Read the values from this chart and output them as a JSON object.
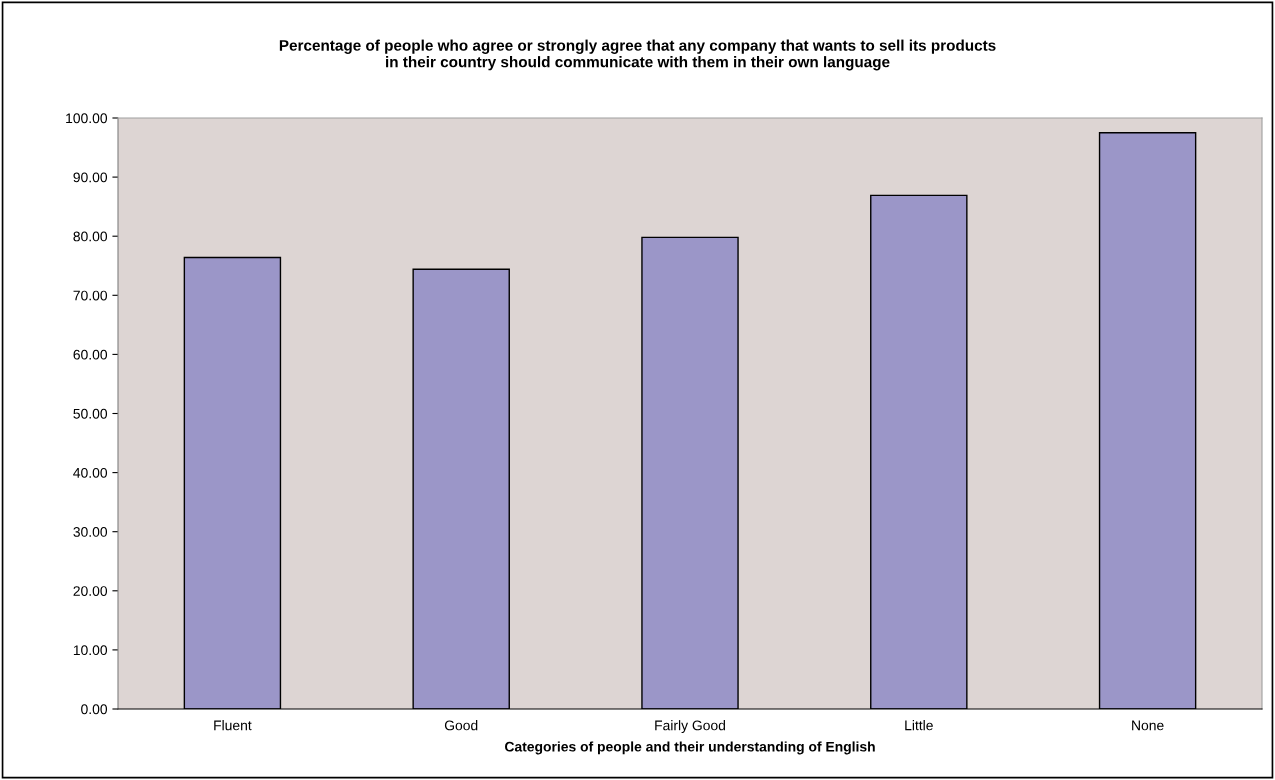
{
  "chart_data": {
    "type": "bar",
    "title": "Percentage of people who agree or strongly agree that any company that wants to sell its products\nin their country should communicate with them in their own language",
    "xlabel": "Categories of people and their understanding of English",
    "categories": [
      "Fluent",
      "Good",
      "Fairly Good",
      "Little",
      "None"
    ],
    "values": [
      76.4,
      74.4,
      79.8,
      86.9,
      97.5
    ],
    "color": "#9b96c8",
    "ylim": [
      0,
      100
    ],
    "yticks": [
      {
        "value": 0,
        "label": "0.00"
      },
      {
        "value": 10,
        "label": "10.00"
      },
      {
        "value": 20,
        "label": "20.00"
      },
      {
        "value": 30,
        "label": "30.00"
      },
      {
        "value": 40,
        "label": "40.00"
      },
      {
        "value": 50,
        "label": "50.00"
      },
      {
        "value": 60,
        "label": "60.00"
      },
      {
        "value": 70,
        "label": "70.00"
      },
      {
        "value": 80,
        "label": "80.00"
      },
      {
        "value": 90,
        "label": "90.00"
      },
      {
        "value": 100,
        "label": "100.00"
      }
    ],
    "grid": false
  }
}
